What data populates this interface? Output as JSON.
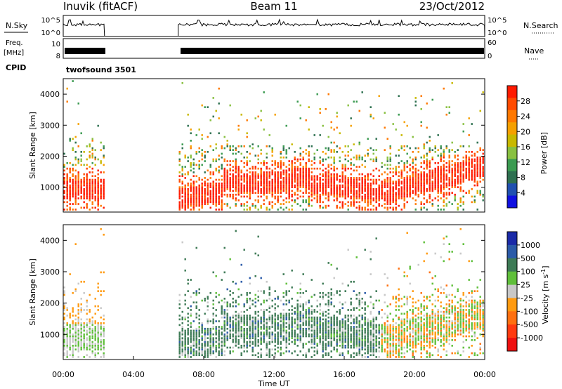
{
  "header": {
    "station": "Inuvik (fitACF)",
    "beam": "Beam 11",
    "date": "23/Oct/2012"
  },
  "top_panels": {
    "nsky_label": "N.Sky",
    "nsky_ticks": [
      "10^5",
      "10^0"
    ],
    "nsearch_label": "N.Search",
    "nsearch_ticks": [
      "10^5",
      "10^0"
    ],
    "freq_label": "Freq.",
    "freq_unit": "[MHz]",
    "freq_ticks": [
      "10",
      "8"
    ],
    "nave_label": "Nave",
    "nave_ticks": [
      "60",
      "0"
    ],
    "cpid_label": "CPID",
    "cpid_value": "twofsound 3501"
  },
  "chart_data": [
    {
      "type": "heatmap",
      "name": "power",
      "ylabel": "Slant Range [km]",
      "xlabel": "",
      "x_range_hours": [
        0,
        24
      ],
      "ylim": [
        200,
        4500
      ],
      "y_ticks": [
        "1000",
        "2000",
        "3000",
        "4000"
      ],
      "data_gaps_hours": [
        [
          2.35,
          6.55
        ]
      ],
      "colorbar": {
        "label": "Power [dB]",
        "ticks": [
          "28",
          "24",
          "20",
          "16",
          "12",
          "8",
          "4"
        ],
        "colors": [
          "#ff1a00",
          "#ff4a00",
          "#ff7800",
          "#f5a000",
          "#c8b800",
          "#88c040",
          "#3a9a50",
          "#2e7050",
          "#2050b0",
          "#1010e0"
        ]
      }
    },
    {
      "type": "heatmap",
      "name": "velocity",
      "ylabel": "Slant Range [km]",
      "xlabel": "Time UT",
      "x_range_hours": [
        0,
        24
      ],
      "x_ticks": [
        "00:00",
        "04:00",
        "08:00",
        "12:00",
        "16:00",
        "20:00",
        "00:00"
      ],
      "ylim": [
        200,
        4500
      ],
      "y_ticks": [
        "1000",
        "2000",
        "3000",
        "4000"
      ],
      "data_gaps_hours": [
        [
          2.35,
          6.55
        ]
      ],
      "colorbar": {
        "label": "Velocity [m s",
        "unit_exponent": "-1",
        "unit_close": "]",
        "ticks": [
          "1000",
          "500",
          "100",
          "25",
          "-25",
          "-100",
          "-500",
          "-1000"
        ],
        "colors": [
          "#1a2aa8",
          "#2a5aa8",
          "#3d7a55",
          "#5fbf3a",
          "#c8c8c8",
          "#ff9a10",
          "#ff7010",
          "#ff3a10",
          "#ee1010"
        ]
      }
    }
  ]
}
